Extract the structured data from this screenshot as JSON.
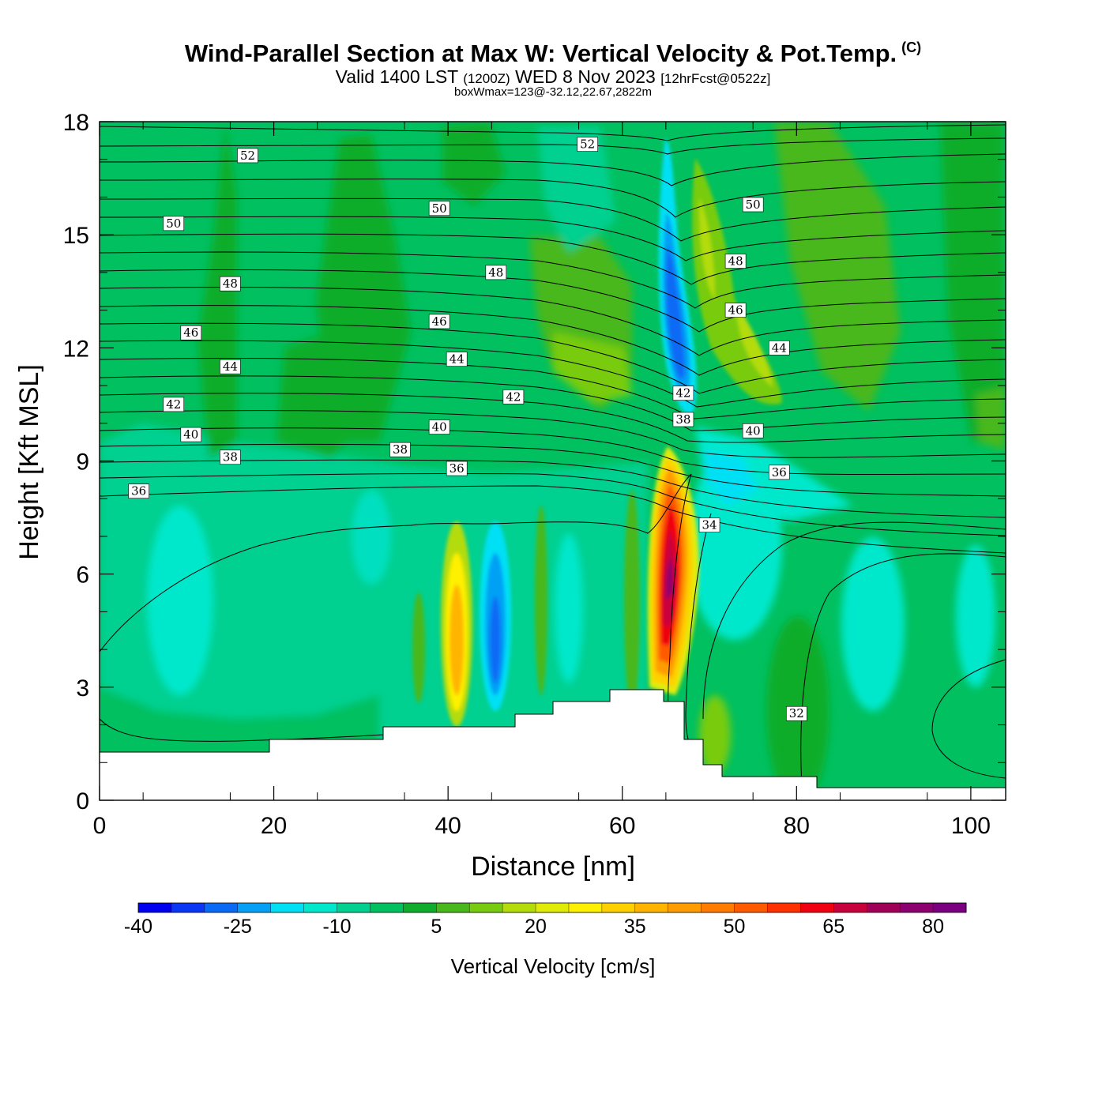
{
  "title": "Wind-Parallel Section at Max W: Vertical Velocity & Pot.Temp.",
  "copyright": "(C)",
  "subtitle": {
    "valid": "Valid 1400 LST",
    "utc": "(1200Z)",
    "date": "WED 8 Nov 2023",
    "forecast": "[12hrFcst@0522z]"
  },
  "box_info": "boxWmax=123@-32.12,22.67,2822m",
  "chart_data": {
    "type": "heatmap",
    "title": "Wind-Parallel Section at Max W: Vertical Velocity & Pot.Temp.",
    "xlabel": "Distance [nm]",
    "ylabel": "Height [Kft MSL]",
    "xlim": [
      0,
      104
    ],
    "ylim": [
      0,
      18
    ],
    "x_ticks": [
      "0",
      "20",
      "40",
      "60",
      "80",
      "100"
    ],
    "y_ticks": [
      "0",
      "3",
      "6",
      "9",
      "12",
      "15",
      "18"
    ],
    "colorbar": {
      "label": "Vertical Velocity [cm/s]",
      "levels": [
        -40,
        -35,
        -30,
        -25,
        -20,
        -15,
        -10,
        -5,
        0,
        5,
        10,
        15,
        20,
        25,
        30,
        35,
        40,
        45,
        50,
        55,
        60,
        65,
        70,
        75,
        80,
        85
      ],
      "tick_labels": [
        "-40",
        "-25",
        "-10",
        "5",
        "20",
        "35",
        "50",
        "65",
        "80"
      ],
      "colors": [
        "#0000f0",
        "#0a36f5",
        "#0a6af5",
        "#04a0f5",
        "#00e0f5",
        "#00e8cc",
        "#00d090",
        "#00c060",
        "#10ad2c",
        "#48b81c",
        "#78cc10",
        "#b4dc08",
        "#e0ec08",
        "#fff000",
        "#ffd000",
        "#ffb400",
        "#ff9c00",
        "#ff7c00",
        "#ff5a00",
        "#ff3000",
        "#f00010",
        "#c8003c",
        "#a00058",
        "#8c0070",
        "#7a0080"
      ]
    },
    "theta_contour_labels": [
      {
        "value": "52",
        "x": 17,
        "y": 17.1
      },
      {
        "value": "52",
        "x": 56,
        "y": 17.4
      },
      {
        "value": "50",
        "x": 8.5,
        "y": 15.3
      },
      {
        "value": "50",
        "x": 39,
        "y": 15.7
      },
      {
        "value": "50",
        "x": 75,
        "y": 15.8
      },
      {
        "value": "48",
        "x": 15,
        "y": 13.7
      },
      {
        "value": "48",
        "x": 45.5,
        "y": 14.0
      },
      {
        "value": "48",
        "x": 73,
        "y": 14.3
      },
      {
        "value": "46",
        "x": 10.5,
        "y": 12.4
      },
      {
        "value": "46",
        "x": 39,
        "y": 12.7
      },
      {
        "value": "46",
        "x": 73,
        "y": 13.0
      },
      {
        "value": "44",
        "x": 15,
        "y": 11.5
      },
      {
        "value": "44",
        "x": 41,
        "y": 11.7
      },
      {
        "value": "44",
        "x": 78,
        "y": 12.0
      },
      {
        "value": "42",
        "x": 8.5,
        "y": 10.5
      },
      {
        "value": "42",
        "x": 47.5,
        "y": 10.7
      },
      {
        "value": "42",
        "x": 67,
        "y": 10.8
      },
      {
        "value": "40",
        "x": 10.5,
        "y": 9.7
      },
      {
        "value": "40",
        "x": 39,
        "y": 9.9
      },
      {
        "value": "40",
        "x": 75,
        "y": 9.8
      },
      {
        "value": "38",
        "x": 15,
        "y": 9.1
      },
      {
        "value": "38",
        "x": 34.5,
        "y": 9.3
      },
      {
        "value": "38",
        "x": 67,
        "y": 10.1
      },
      {
        "value": "36",
        "x": 4.5,
        "y": 8.2
      },
      {
        "value": "36",
        "x": 41,
        "y": 8.8
      },
      {
        "value": "36",
        "x": 78,
        "y": 8.7
      },
      {
        "value": "34",
        "x": 70,
        "y": 7.3
      },
      {
        "value": "32",
        "x": 80,
        "y": 2.3
      }
    ],
    "features": [
      {
        "type": "updraft",
        "x": 65,
        "height_kft": 6.2,
        "max_cm_s": 80
      },
      {
        "type": "downdraft",
        "x": 66,
        "height_kft": 12.5,
        "min_cm_s": -30
      },
      {
        "type": "updraft",
        "x": 41,
        "height_kft": 4.2,
        "max_cm_s": 35
      },
      {
        "type": "downdraft",
        "x": 45.5,
        "height_kft": 4.4,
        "min_cm_s": -25
      }
    ],
    "terrain_kft": [
      {
        "x": 0,
        "h": 1.3
      },
      {
        "x": 19.5,
        "h": 1.3
      },
      {
        "x": 19.5,
        "h": 1.6
      },
      {
        "x": 32.5,
        "h": 1.6
      },
      {
        "x": 32.5,
        "h": 1.95
      },
      {
        "x": 47.5,
        "h": 1.95
      },
      {
        "x": 47.5,
        "h": 2.3
      },
      {
        "x": 52,
        "h": 2.3
      },
      {
        "x": 52,
        "h": 2.6
      },
      {
        "x": 58.5,
        "h": 2.6
      },
      {
        "x": 58.5,
        "h": 2.9
      },
      {
        "x": 65,
        "h": 2.9
      },
      {
        "x": 65,
        "h": 2.6
      },
      {
        "x": 67,
        "h": 2.6
      },
      {
        "x": 67,
        "h": 1.6
      },
      {
        "x": 69,
        "h": 1.6
      },
      {
        "x": 69,
        "h": 1.0
      },
      {
        "x": 71.5,
        "h": 1.0
      },
      {
        "x": 71.5,
        "h": 0.65
      },
      {
        "x": 82.5,
        "h": 0.65
      },
      {
        "x": 82.5,
        "h": 0.35
      },
      {
        "x": 104,
        "h": 0.35
      }
    ]
  }
}
